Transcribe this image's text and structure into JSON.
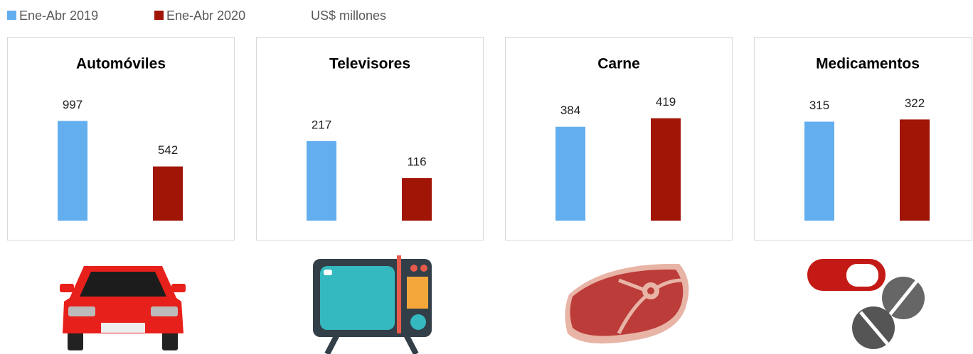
{
  "legend": [
    {
      "name": "Ene-Abr 2019",
      "color": "#63aeee"
    },
    {
      "name": "Ene-Abr 2020",
      "color": "#a11507"
    }
  ],
  "unit_note": "US$ millones",
  "chart_data": [
    {
      "type": "bar",
      "title": "Automóviles",
      "values": [
        997,
        542
      ],
      "ylim": [
        0,
        1100
      ]
    },
    {
      "type": "bar",
      "title": "Televisores",
      "values": [
        217,
        116
      ],
      "ylim": [
        0,
        300
      ]
    },
    {
      "type": "bar",
      "title": "Carne",
      "values": [
        384,
        419
      ],
      "ylim": [
        0,
        450
      ]
    },
    {
      "type": "bar",
      "title": "Medicamentos",
      "values": [
        315,
        322
      ],
      "ylim": [
        0,
        350
      ]
    }
  ]
}
